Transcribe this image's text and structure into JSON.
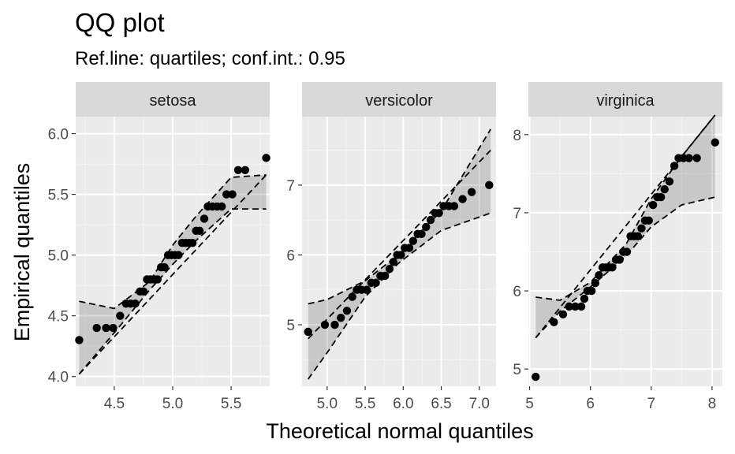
{
  "chart_data": {
    "type": "scatter",
    "title": "QQ plot",
    "subtitle": "Ref.line: quartiles; conf.int.: 0.95",
    "xlabel": "Theoretical normal quantiles",
    "ylabel": "Empirical quantiles",
    "grid": true,
    "facets": [
      {
        "name": "setosa",
        "xlim": [
          4.17,
          5.83
        ],
        "ylim": [
          3.92,
          6.14
        ],
        "xticks": [
          4.5,
          5.0,
          5.5
        ],
        "xtick_labels": [
          "4.5",
          "5.0",
          "5.5"
        ],
        "yticks": [
          4.0,
          4.5,
          5.0,
          5.5,
          6.0
        ],
        "ytick_labels": [
          "4.0",
          "4.5",
          "5.0",
          "5.5",
          "6.0"
        ],
        "ref_line": [
          [
            4.2,
            4.02
          ],
          [
            5.8,
            5.66
          ]
        ],
        "band_lower": [
          [
            4.2,
            4.02
          ],
          [
            4.5,
            4.36
          ],
          [
            4.8,
            4.71
          ],
          [
            5.006,
            4.93
          ],
          [
            5.2,
            5.12
          ],
          [
            5.5,
            5.38
          ],
          [
            5.8,
            5.38
          ]
        ],
        "band_upper": [
          [
            4.2,
            4.62
          ],
          [
            4.5,
            4.56
          ],
          [
            4.8,
            4.78
          ],
          [
            5.006,
            5.09
          ],
          [
            5.2,
            5.32
          ],
          [
            5.5,
            5.64
          ],
          [
            5.8,
            5.66
          ]
        ],
        "points": [
          [
            4.2,
            4.3
          ],
          [
            4.35,
            4.4
          ],
          [
            4.43,
            4.4
          ],
          [
            4.49,
            4.4
          ],
          [
            4.55,
            4.5
          ],
          [
            4.6,
            4.6
          ],
          [
            4.64,
            4.6
          ],
          [
            4.68,
            4.6
          ],
          [
            4.72,
            4.7
          ],
          [
            4.75,
            4.7
          ],
          [
            4.78,
            4.8
          ],
          [
            4.81,
            4.8
          ],
          [
            4.84,
            4.8
          ],
          [
            4.87,
            4.8
          ],
          [
            4.9,
            4.9
          ],
          [
            4.93,
            4.9
          ],
          [
            4.96,
            5.0
          ],
          [
            4.99,
            5.0
          ],
          [
            5.02,
            5.0
          ],
          [
            5.05,
            5.0
          ],
          [
            5.08,
            5.1
          ],
          [
            5.11,
            5.1
          ],
          [
            5.14,
            5.1
          ],
          [
            5.17,
            5.1
          ],
          [
            5.2,
            5.2
          ],
          [
            5.23,
            5.2
          ],
          [
            5.27,
            5.3
          ],
          [
            5.3,
            5.4
          ],
          [
            5.34,
            5.4
          ],
          [
            5.38,
            5.4
          ],
          [
            5.42,
            5.4
          ],
          [
            5.46,
            5.5
          ],
          [
            5.51,
            5.5
          ],
          [
            5.56,
            5.7
          ],
          [
            5.62,
            5.7
          ],
          [
            5.8,
            5.8
          ]
        ]
      },
      {
        "name": "versicolor",
        "xlim": [
          4.67,
          7.22
        ],
        "ylim": [
          4.12,
          7.98
        ],
        "xticks": [
          5.0,
          5.5,
          6.0,
          6.5,
          7.0
        ],
        "xtick_labels": [
          "5.0",
          "5.5",
          "6.0",
          "6.5",
          "7.0"
        ],
        "yticks": [
          5,
          6,
          7
        ],
        "ytick_labels": [
          "5",
          "6",
          "7"
        ],
        "ref_line": [
          [
            4.75,
            4.8
          ],
          [
            7.15,
            7.5
          ]
        ],
        "band_lower": [
          [
            4.75,
            4.22
          ],
          [
            5.0,
            4.6
          ],
          [
            5.5,
            5.4
          ],
          [
            5.936,
            5.88
          ],
          [
            6.5,
            6.35
          ],
          [
            7.15,
            6.6
          ]
        ],
        "band_upper": [
          [
            4.75,
            5.3
          ],
          [
            5.0,
            5.36
          ],
          [
            5.5,
            5.63
          ],
          [
            5.936,
            6.0
          ],
          [
            6.5,
            6.63
          ],
          [
            7.15,
            7.8
          ]
        ],
        "points": [
          [
            4.75,
            4.9
          ],
          [
            4.97,
            5.0
          ],
          [
            5.1,
            5.0
          ],
          [
            5.18,
            5.1
          ],
          [
            5.26,
            5.2
          ],
          [
            5.33,
            5.4
          ],
          [
            5.39,
            5.5
          ],
          [
            5.45,
            5.5
          ],
          [
            5.52,
            5.5
          ],
          [
            5.58,
            5.6
          ],
          [
            5.64,
            5.6
          ],
          [
            5.7,
            5.7
          ],
          [
            5.76,
            5.7
          ],
          [
            5.82,
            5.8
          ],
          [
            5.87,
            5.9
          ],
          [
            5.92,
            6.0
          ],
          [
            5.97,
            6.0
          ],
          [
            6.02,
            6.1
          ],
          [
            6.08,
            6.1
          ],
          [
            6.13,
            6.2
          ],
          [
            6.19,
            6.3
          ],
          [
            6.24,
            6.3
          ],
          [
            6.3,
            6.4
          ],
          [
            6.36,
            6.5
          ],
          [
            6.42,
            6.6
          ],
          [
            6.47,
            6.6
          ],
          [
            6.53,
            6.7
          ],
          [
            6.6,
            6.7
          ],
          [
            6.67,
            6.7
          ],
          [
            6.78,
            6.8
          ],
          [
            6.9,
            6.9
          ],
          [
            7.13,
            7.0
          ]
        ]
      },
      {
        "name": "virginica",
        "xlim": [
          4.98,
          8.17
        ],
        "ylim": [
          4.78,
          8.23
        ],
        "xticks": [
          5,
          6,
          7,
          8
        ],
        "xtick_labels": [
          "5",
          "6",
          "7",
          "8"
        ],
        "yticks": [
          5,
          6,
          7,
          8
        ],
        "ytick_labels": [
          "5",
          "6",
          "7",
          "8"
        ],
        "ref_line": [
          [
            5.1,
            5.4
          ],
          [
            8.05,
            8.25
          ]
        ],
        "band_lower": [
          [
            5.1,
            5.4
          ],
          [
            5.5,
            5.74
          ],
          [
            6.0,
            6.05
          ],
          [
            6.588,
            6.45
          ],
          [
            7.0,
            6.82
          ],
          [
            7.5,
            7.1
          ],
          [
            8.05,
            7.2
          ]
        ],
        "band_upper": [
          [
            5.1,
            5.92
          ],
          [
            5.5,
            5.88
          ],
          [
            6.0,
            6.11
          ],
          [
            6.588,
            6.6
          ],
          [
            7.0,
            7.18
          ],
          [
            7.5,
            7.72
          ],
          [
            8.05,
            8.25
          ]
        ],
        "points": [
          [
            5.1,
            4.9
          ],
          [
            5.4,
            5.6
          ],
          [
            5.55,
            5.7
          ],
          [
            5.65,
            5.8
          ],
          [
            5.75,
            5.8
          ],
          [
            5.85,
            5.8
          ],
          [
            5.9,
            5.9
          ],
          [
            5.95,
            6.0
          ],
          [
            6.02,
            6.0
          ],
          [
            6.08,
            6.1
          ],
          [
            6.14,
            6.2
          ],
          [
            6.2,
            6.3
          ],
          [
            6.25,
            6.3
          ],
          [
            6.31,
            6.3
          ],
          [
            6.36,
            6.3
          ],
          [
            6.42,
            6.4
          ],
          [
            6.48,
            6.4
          ],
          [
            6.54,
            6.5
          ],
          [
            6.6,
            6.5
          ],
          [
            6.66,
            6.7
          ],
          [
            6.72,
            6.7
          ],
          [
            6.78,
            6.7
          ],
          [
            6.84,
            6.8
          ],
          [
            6.9,
            6.9
          ],
          [
            6.96,
            6.9
          ],
          [
            7.03,
            7.1
          ],
          [
            7.1,
            7.2
          ],
          [
            7.16,
            7.2
          ],
          [
            7.22,
            7.3
          ],
          [
            7.3,
            7.4
          ],
          [
            7.38,
            7.6
          ],
          [
            7.45,
            7.7
          ],
          [
            7.53,
            7.7
          ],
          [
            7.62,
            7.7
          ],
          [
            7.75,
            7.7
          ],
          [
            8.05,
            7.9
          ]
        ]
      }
    ]
  }
}
